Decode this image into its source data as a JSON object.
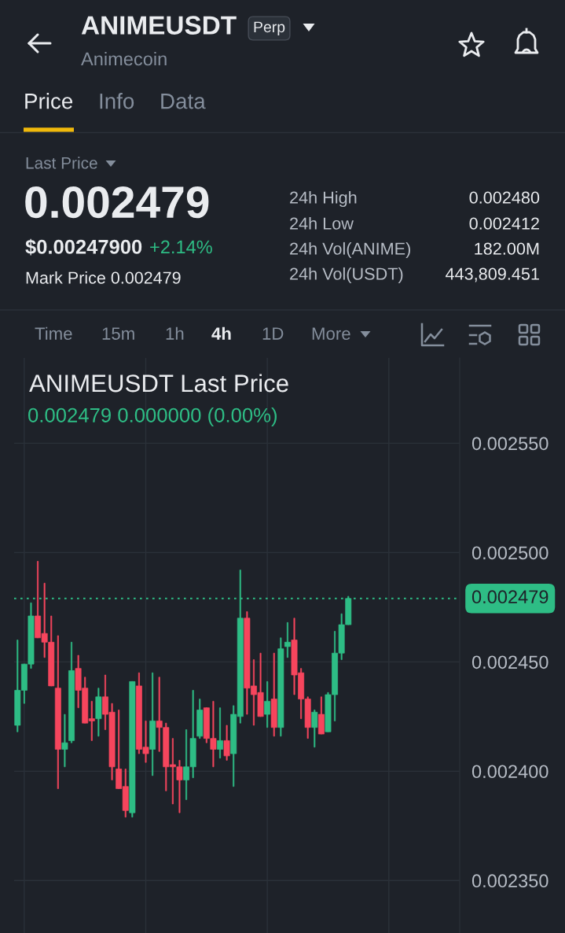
{
  "chart_data": [
    {
      "type": "other",
      "title": "ANIMEUSDT",
      "subtitle": "Animecoin",
      "annotations": [
        "Perp",
        "Price",
        "Info",
        "Data",
        "Last Price",
        "0.002479",
        "$0.00247900",
        "+2.14%",
        "Mark Price 0.002479",
        "24h High",
        "0.002480",
        "24h Low",
        "0.002412",
        "24h Vol(ANIME)",
        "182.00M",
        "24h Vol(USDT)",
        "443,809.451",
        "Time",
        "15m",
        "1h",
        "4h",
        "1D",
        "More"
      ]
    },
    {
      "type": "candlestick",
      "title": "ANIMEUSDT Last Price",
      "subtitle": "0.002479 0.000000 (0.00%)",
      "categories": [
        null,
        null,
        null,
        null,
        null,
        null,
        null,
        null,
        null,
        null,
        null,
        null,
        null,
        null,
        null,
        null,
        null,
        null,
        null,
        null,
        null,
        null,
        null,
        null,
        null,
        null,
        null,
        null,
        null,
        null,
        null,
        null,
        null,
        null,
        null,
        null,
        null,
        null,
        null,
        null,
        null,
        null,
        null,
        null,
        null,
        null,
        null,
        null,
        null,
        null,
        null,
        null,
        null,
        null,
        null,
        null,
        null,
        null,
        null,
        null,
        null,
        null,
        null,
        null,
        null,
        null
      ],
      "ohlc": [
        [
          0.002421,
          0.00246,
          0.002418,
          0.002437
        ],
        [
          0.002437,
          0.002449,
          0.002431,
          0.002449
        ],
        [
          0.002449,
          0.002477,
          0.002447,
          0.002471
        ],
        [
          0.002471,
          0.002496,
          0.002461,
          0.002461
        ],
        [
          0.002463,
          0.002486,
          0.002452,
          0.002459
        ],
        [
          0.002459,
          0.002471,
          0.002439,
          0.002439
        ],
        [
          0.002438,
          0.002462,
          0.002392,
          0.00241
        ],
        [
          0.00241,
          0.002426,
          0.002402,
          0.002413
        ],
        [
          0.002414,
          0.002459,
          0.002413,
          0.002446
        ],
        [
          0.002447,
          0.002453,
          0.002429,
          0.002437
        ],
        [
          0.002438,
          0.002443,
          0.002422,
          0.002422
        ],
        [
          0.002424,
          0.002432,
          0.002414,
          0.002423
        ],
        [
          0.002424,
          0.002438,
          0.002416,
          0.002434
        ],
        [
          0.002434,
          0.002444,
          0.002419,
          0.002426
        ],
        [
          0.002427,
          0.002431,
          0.002396,
          0.002402
        ],
        [
          0.002401,
          0.002428,
          0.002392,
          0.002392
        ],
        [
          0.002393,
          0.002401,
          0.002379,
          0.002382
        ],
        [
          0.002381,
          0.002441,
          0.002379,
          0.002441
        ],
        [
          0.002439,
          0.002445,
          0.002408,
          0.00241
        ],
        [
          0.002411,
          0.002423,
          0.002404,
          0.002408
        ],
        [
          0.00241,
          0.002445,
          0.002398,
          0.002423
        ],
        [
          0.002423,
          0.002443,
          0.002409,
          0.00242
        ],
        [
          0.00242,
          0.002422,
          0.002391,
          0.002402
        ],
        [
          0.002403,
          0.002415,
          0.002385,
          0.002402
        ],
        [
          0.002402,
          0.002405,
          0.002381,
          0.002396
        ],
        [
          0.002396,
          0.002419,
          0.002387,
          0.002402
        ],
        [
          0.002402,
          0.002437,
          0.002397,
          0.002415
        ],
        [
          0.002416,
          0.002433,
          0.002415,
          0.002428
        ],
        [
          0.002429,
          0.002429,
          0.002413,
          0.002415
        ],
        [
          0.002415,
          0.002432,
          0.002402,
          0.00241
        ],
        [
          0.00241,
          0.002429,
          0.002406,
          0.002414
        ],
        [
          0.002414,
          0.002421,
          0.002405,
          0.002407
        ],
        [
          0.002408,
          0.00243,
          0.002393,
          0.002426
        ],
        [
          0.002425,
          0.002492,
          0.002422,
          0.00247
        ],
        [
          0.00247,
          0.002473,
          0.002426,
          0.002438
        ],
        [
          0.002439,
          0.002451,
          0.002421,
          0.002435
        ],
        [
          0.002436,
          0.002454,
          0.002425,
          0.002425
        ],
        [
          0.002426,
          0.002441,
          0.00242,
          0.002432
        ],
        [
          0.002433,
          0.002454,
          0.002416,
          0.00242
        ],
        [
          0.00242,
          0.002461,
          0.002416,
          0.002456
        ],
        [
          0.002457,
          0.002468,
          0.002452,
          0.002459
        ],
        [
          0.00246,
          0.00247,
          0.002435,
          0.002444
        ],
        [
          0.002445,
          0.002447,
          0.002424,
          0.002433
        ],
        [
          0.002433,
          0.002434,
          0.002415,
          0.00242
        ],
        [
          0.00242,
          0.002428,
          0.002411,
          0.002427
        ],
        [
          0.002426,
          0.002434,
          0.002417,
          0.002417
        ],
        [
          0.002418,
          0.002436,
          0.002418,
          0.002435
        ],
        [
          0.002435,
          0.002464,
          0.002423,
          0.002454
        ],
        [
          0.002454,
          0.002472,
          0.002451,
          0.002467
        ],
        [
          0.002467,
          0.00248,
          0.002467,
          0.002479
        ],
        null,
        null,
        null,
        null,
        null,
        null,
        null,
        null,
        null,
        null,
        null,
        null,
        null,
        null,
        null,
        null
      ],
      "colors": [
        "#2ebd85",
        "#2ebd85",
        "#2ebd85",
        "#f6465d",
        "#f6465d",
        "#f6465d",
        "#f6465d",
        "#2ebd85",
        "#2ebd85",
        "#f6465d",
        "#f6465d",
        "#f6465d",
        "#2ebd85",
        "#f6465d",
        "#f6465d",
        "#f6465d",
        "#f6465d",
        "#2ebd85",
        "#f6465d",
        "#f6465d",
        "#2ebd85",
        "#f6465d",
        "#f6465d",
        "#f6465d",
        "#f6465d",
        "#2ebd85",
        "#2ebd85",
        "#2ebd85",
        "#f6465d",
        "#f6465d",
        "#2ebd85",
        "#f6465d",
        "#2ebd85",
        "#2ebd85",
        "#f6465d",
        "#f6465d",
        "#f6465d",
        "#2ebd85",
        "#f6465d",
        "#2ebd85",
        "#2ebd85",
        "#f6465d",
        "#f6465d",
        "#f6465d",
        "#2ebd85",
        "#f6465d",
        "#2ebd85",
        "#2ebd85",
        "#2ebd85",
        "#2ebd85",
        null,
        null,
        null,
        null,
        null,
        null,
        null,
        null,
        null,
        null,
        null,
        null,
        null,
        null,
        null,
        null
      ],
      "ylim": [
        0.002326,
        0.002589
      ],
      "yticks": [
        {
          "value": 0.00255,
          "label": "0.002550"
        },
        {
          "value": 0.0025,
          "label": "0.002500"
        },
        {
          "value": 0.00245,
          "label": "0.002450"
        },
        {
          "value": 0.0024,
          "label": "0.002400"
        },
        {
          "value": 0.00235,
          "label": "0.002350"
        }
      ],
      "ref_lines": [
        {
          "axis": "y",
          "value": 0.002479,
          "label": "0.002479",
          "color": "#2ebd85",
          "line_style": "dotted"
        }
      ],
      "grid": true,
      "tick_labels": "y"
    }
  ]
}
